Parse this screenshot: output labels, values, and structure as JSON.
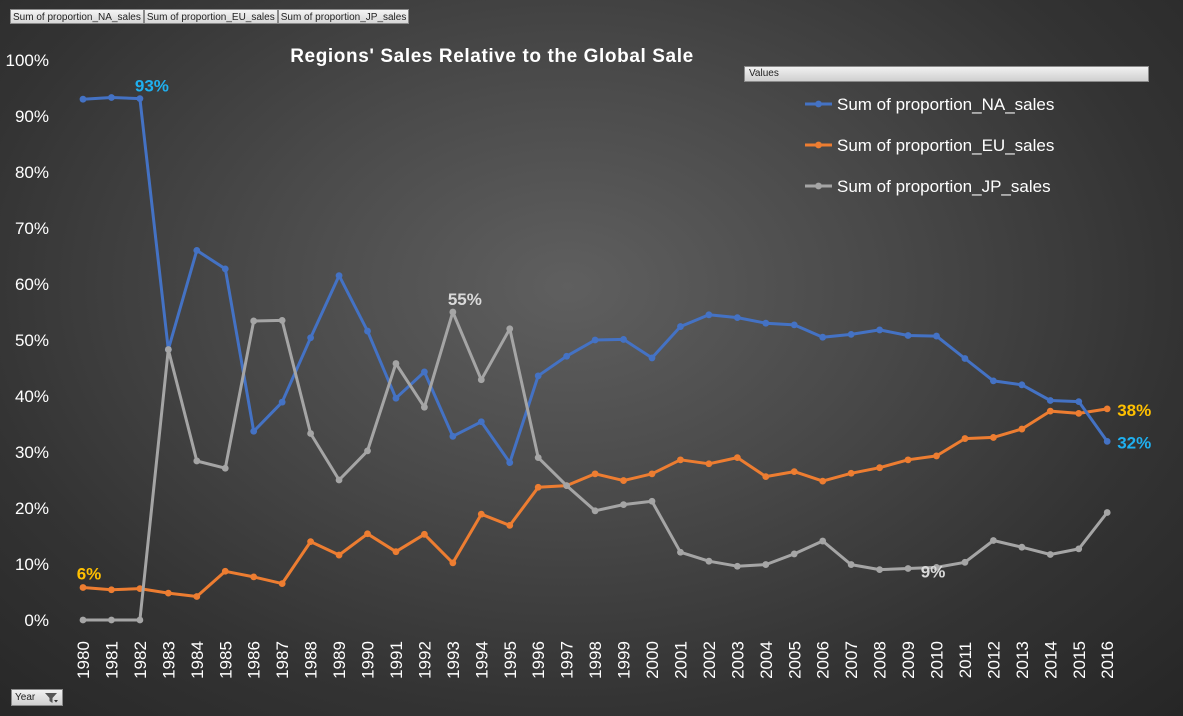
{
  "field_buttons": [
    "Sum of proportion_NA_sales",
    "Sum of proportion_EU_sales",
    "Sum of proportion_JP_sales"
  ],
  "values_label": "Values",
  "year_filter_label": "Year",
  "colors": {
    "na": "#4472C4",
    "eu": "#ED7D31",
    "jp": "#A5A5A5",
    "label_na": "#1FB0F0",
    "label_eu": "#FFC000",
    "label_jp": "#D9D9D9"
  },
  "chart_data": {
    "type": "line",
    "title": "Regions' Sales Relative to the Global Sale",
    "ylim": [
      0,
      100
    ],
    "y_ticks": [
      "0%",
      "10%",
      "20%",
      "30%",
      "40%",
      "50%",
      "60%",
      "70%",
      "80%",
      "90%",
      "100%"
    ],
    "legend_position": "top-right",
    "categories": [
      "1980",
      "1981",
      "1982",
      "1983",
      "1984",
      "1985",
      "1986",
      "1987",
      "1988",
      "1989",
      "1990",
      "1991",
      "1992",
      "1993",
      "1994",
      "1995",
      "1996",
      "1997",
      "1998",
      "1999",
      "2000",
      "2001",
      "2002",
      "2003",
      "2004",
      "2005",
      "2006",
      "2007",
      "2008",
      "2009",
      "2010",
      "2011",
      "2012",
      "2013",
      "2014",
      "2015",
      "2016"
    ],
    "series": [
      {
        "name": "Sum of proportion_NA_sales",
        "key": "na",
        "values": [
          93.0,
          93.3,
          93.1,
          48.3,
          66.0,
          62.7,
          33.7,
          38.9,
          50.4,
          61.5,
          51.6,
          39.6,
          44.3,
          32.8,
          35.4,
          28.1,
          43.6,
          47.1,
          50.0,
          50.1,
          46.8,
          52.4,
          54.5,
          54.0,
          53.0,
          52.7,
          50.5,
          51.0,
          51.8,
          50.8,
          50.7,
          46.7,
          42.7,
          42.0,
          39.2,
          39.0,
          31.9
        ]
      },
      {
        "name": "Sum of proportion_EU_sales",
        "key": "eu",
        "values": [
          5.8,
          5.4,
          5.6,
          4.8,
          4.2,
          8.7,
          7.7,
          6.5,
          14.0,
          11.6,
          15.4,
          12.2,
          15.3,
          10.2,
          18.9,
          16.9,
          23.7,
          24.0,
          26.1,
          24.9,
          26.1,
          28.6,
          27.9,
          29.0,
          25.6,
          26.5,
          24.8,
          26.2,
          27.2,
          28.6,
          29.3,
          32.4,
          32.6,
          34.1,
          37.3,
          36.9,
          37.7
        ]
      },
      {
        "name": "Sum of proportion_JP_sales",
        "key": "jp",
        "values": [
          0,
          0,
          0,
          48.3,
          28.4,
          27.1,
          53.4,
          53.5,
          33.3,
          25.0,
          30.2,
          45.8,
          38.0,
          55.0,
          42.9,
          52.0,
          29.0,
          24.0,
          19.5,
          20.6,
          21.2,
          12.1,
          10.5,
          9.6,
          9.9,
          11.8,
          14.1,
          9.9,
          9.0,
          9.2,
          9.4,
          10.3,
          14.2,
          13.0,
          11.7,
          12.7,
          19.2
        ]
      }
    ],
    "annotations": [
      {
        "text": "93%",
        "series": "na",
        "year": "1982"
      },
      {
        "text": "55%",
        "series": "jp",
        "year": "1993"
      },
      {
        "text": "6%",
        "series": "eu",
        "year": "1980"
      },
      {
        "text": "9%",
        "series": "jp",
        "year": "2009"
      },
      {
        "text": "38%",
        "series": "eu",
        "year": "2016"
      },
      {
        "text": "32%",
        "series": "na",
        "year": "2016"
      }
    ]
  }
}
